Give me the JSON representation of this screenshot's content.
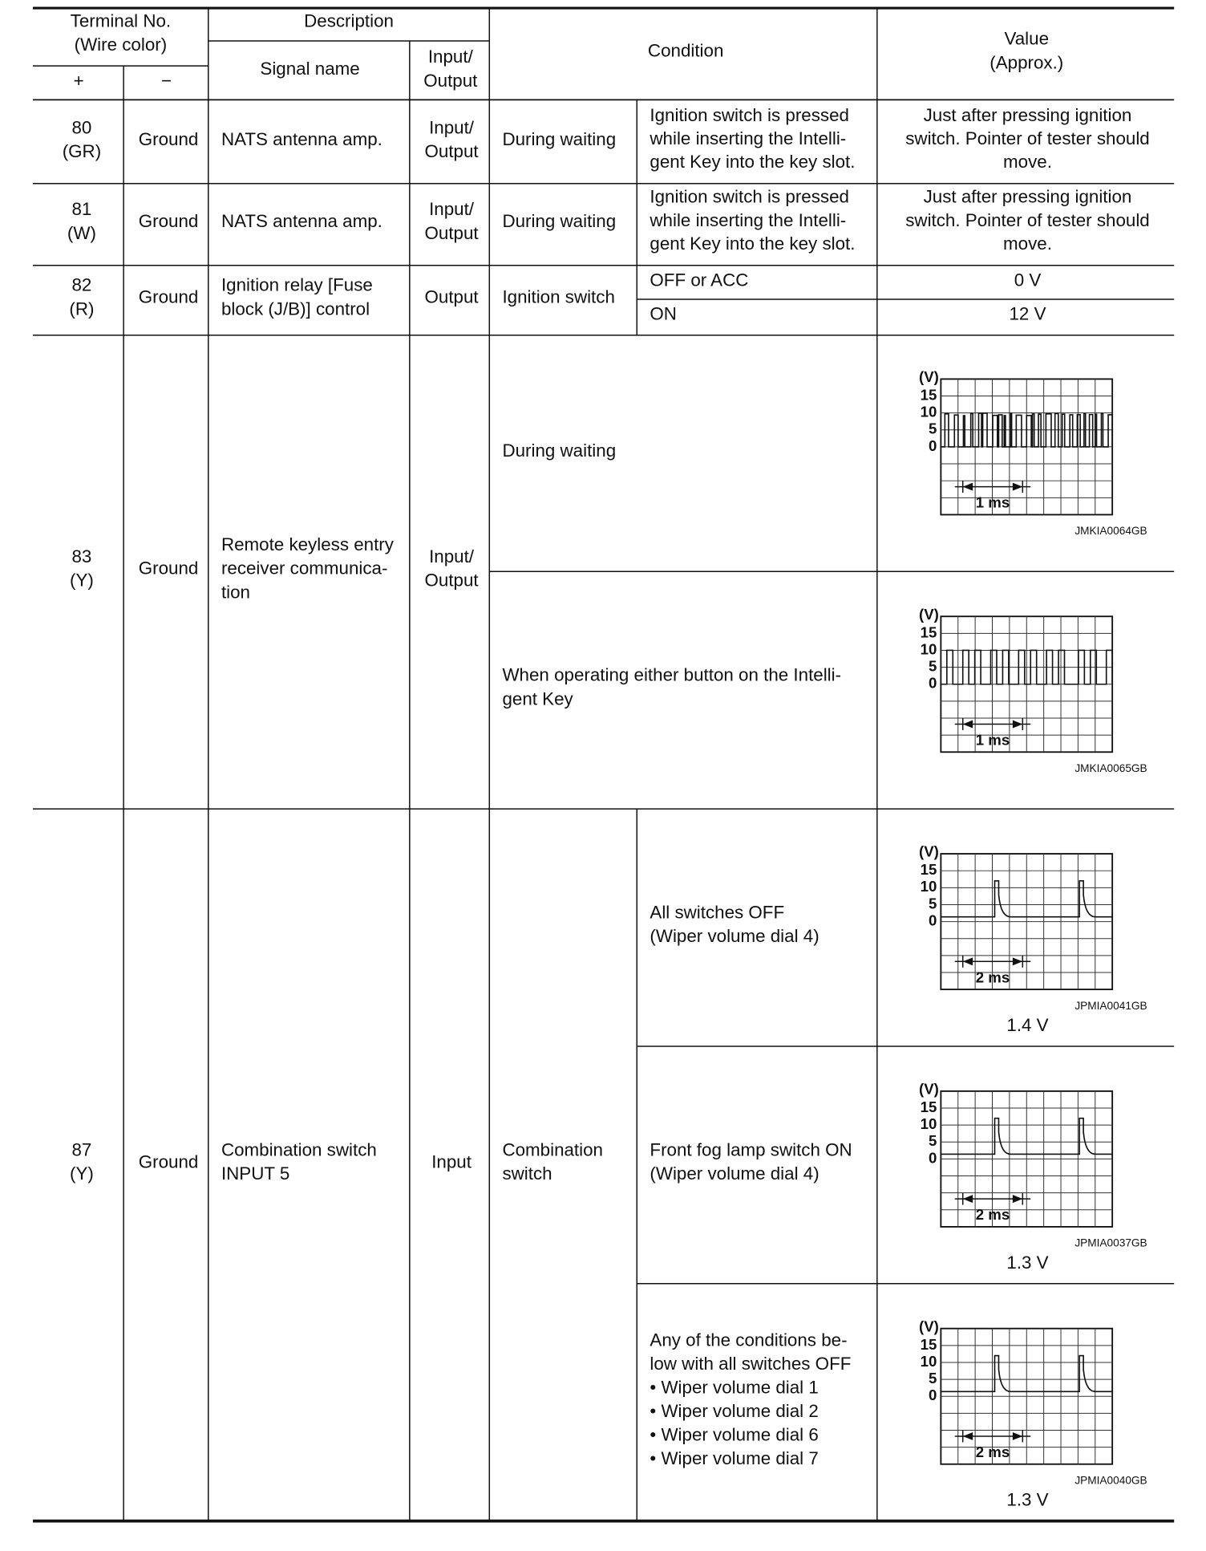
{
  "header": {
    "terminal_no": [
      "Terminal No.",
      "(Wire color)"
    ],
    "plus": "+",
    "minus": "−",
    "description": "Description",
    "signal_name": "Signal name",
    "input_output": [
      "Input/",
      "Output"
    ],
    "condition": "Condition",
    "value": [
      "Value",
      "(Approx.)"
    ]
  },
  "rows": [
    {
      "terminal": [
        "80",
        "(GR)"
      ],
      "ground": "Ground",
      "signal_name": [
        "NATS antenna amp."
      ],
      "io": [
        "Input/",
        "Output"
      ],
      "condition": [
        "During waiting"
      ],
      "detail": [
        "Ignition switch is pressed",
        "while inserting the Intelli-",
        "gent Key into the key slot."
      ],
      "value": [
        "Just after pressing ignition",
        "switch. Pointer of tester should",
        "move."
      ]
    },
    {
      "terminal": [
        "81",
        "(W)"
      ],
      "ground": "Ground",
      "signal_name": [
        "NATS antenna amp."
      ],
      "io": [
        "Input/",
        "Output"
      ],
      "condition": [
        "During waiting"
      ],
      "detail": [
        "Ignition switch is pressed",
        "while inserting the Intelli-",
        "gent Key into the key slot."
      ],
      "value": [
        "Just after pressing ignition",
        "switch. Pointer of tester should",
        "move."
      ]
    },
    {
      "terminal": [
        "82",
        "(R)"
      ],
      "ground": "Ground",
      "signal_name": [
        "Ignition relay [Fuse",
        "block (J/B)] control"
      ],
      "io": [
        "Output"
      ],
      "condition": [
        "Ignition switch"
      ],
      "states": [
        {
          "detail": [
            "OFF or ACC"
          ],
          "value": [
            "0 V"
          ]
        },
        {
          "detail": [
            "ON"
          ],
          "value": [
            "12 V"
          ]
        }
      ]
    },
    {
      "terminal": [
        "83",
        "(Y)"
      ],
      "ground": "Ground",
      "signal_name": [
        "Remote keyless entry",
        "receiver communica-",
        "tion"
      ],
      "io": [
        "Input/",
        "Output"
      ],
      "states": [
        {
          "condition": [
            "During waiting"
          ],
          "figure": {
            "unit": "(V)",
            "ticks": [
              "15",
              "10",
              "5",
              "0"
            ],
            "time": "1 ms",
            "code": "JMKIA0064GB"
          }
        },
        {
          "condition": [
            "When operating either button on the Intelli-",
            "gent Key"
          ],
          "figure": {
            "unit": "(V)",
            "ticks": [
              "15",
              "10",
              "5",
              "0"
            ],
            "time": "1 ms",
            "code": "JMKIA0065GB"
          }
        }
      ]
    },
    {
      "terminal": [
        "87",
        "(Y)"
      ],
      "ground": "Ground",
      "signal_name": [
        "Combination switch",
        "INPUT 5"
      ],
      "io": [
        "Input"
      ],
      "condition": [
        "Combination",
        "switch"
      ],
      "states": [
        {
          "detail": [
            "All switches OFF",
            "(Wiper volume dial 4)"
          ],
          "figure": {
            "unit": "(V)",
            "ticks": [
              "15",
              "10",
              "5",
              "0"
            ],
            "time": "2 ms",
            "code": "JPMIA0041GB"
          },
          "value": "1.4 V"
        },
        {
          "detail": [
            "Front fog lamp switch ON",
            "(Wiper volume dial 4)"
          ],
          "figure": {
            "unit": "(V)",
            "ticks": [
              "15",
              "10",
              "5",
              "0"
            ],
            "time": "2 ms",
            "code": "JPMIA0037GB"
          },
          "value": "1.3 V"
        },
        {
          "detail": [
            "Any of the conditions be-",
            "low with all switches OFF",
            "•  Wiper volume dial 1",
            "•  Wiper volume dial 2",
            "•  Wiper volume dial 6",
            "•  Wiper volume dial 7"
          ],
          "figure": {
            "unit": "(V)",
            "ticks": [
              "15",
              "10",
              "5",
              "0"
            ],
            "time": "2 ms",
            "code": "JPMIA0040GB"
          },
          "value": "1.3 V"
        }
      ]
    }
  ]
}
